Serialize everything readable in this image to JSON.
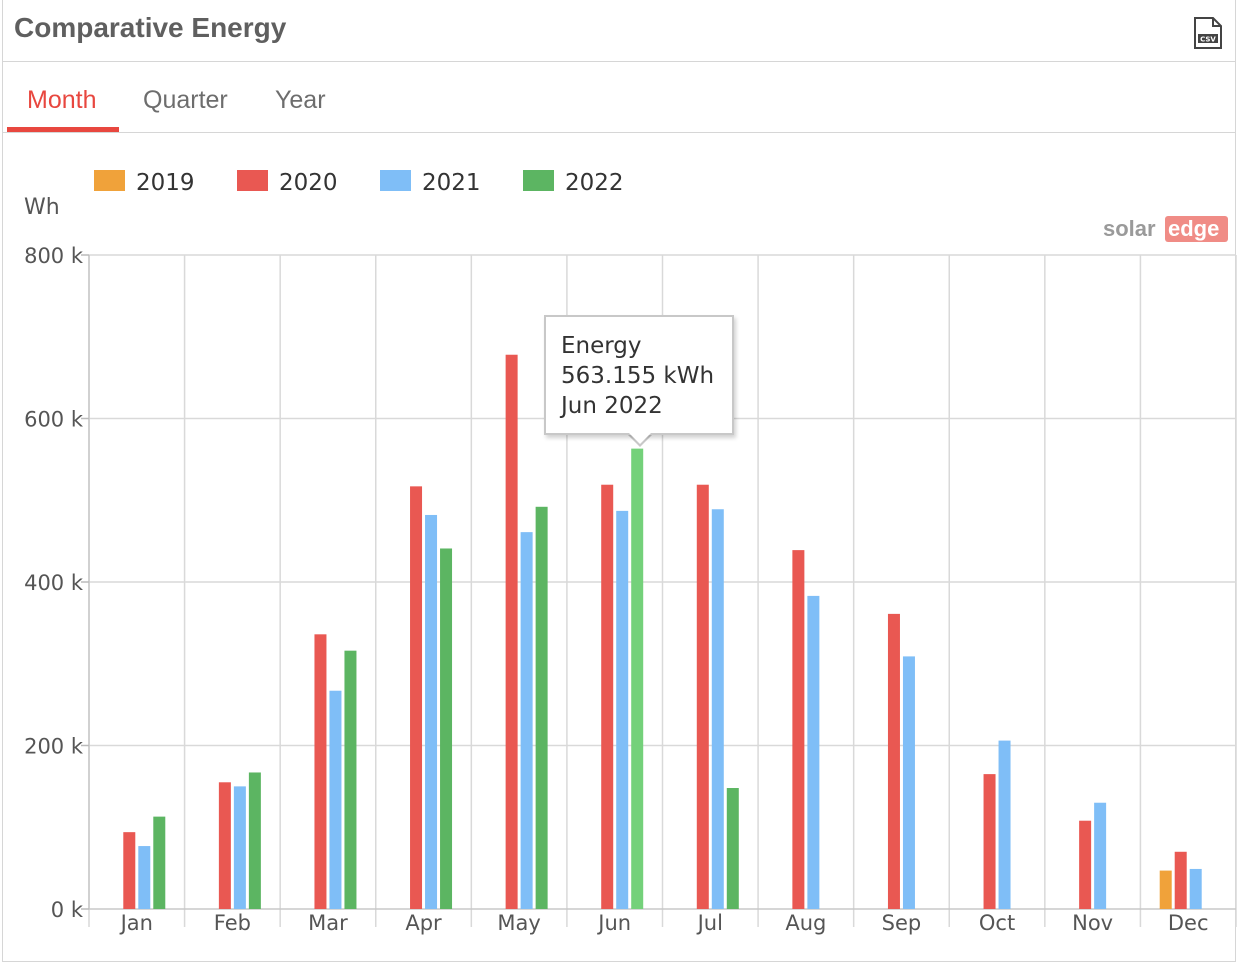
{
  "header": {
    "title": "Comparative Energy",
    "csv_icon": "csv-file-icon",
    "csv_label": "CSV"
  },
  "tabs": [
    {
      "label": "Month",
      "active": true
    },
    {
      "label": "Quarter",
      "active": false
    },
    {
      "label": "Year",
      "active": false
    }
  ],
  "brand": {
    "solar": "solar",
    "edge": "edge"
  },
  "tooltip": {
    "line1": "Energy",
    "line2": "563.155 kWh",
    "line3": "Jun 2022"
  },
  "colors": {
    "2019": "#f0a23a",
    "2020": "#e95852",
    "2021": "#7fbef7",
    "2022": "#5cb562",
    "accent": "#e8473f",
    "highlight": "#74d17a"
  },
  "chart_data": {
    "type": "bar",
    "ylabel": "Wh",
    "ylim": [
      0,
      800000
    ],
    "yticks": [
      0,
      200000,
      400000,
      600000,
      800000
    ],
    "ytick_labels": [
      "0 k",
      "200 k",
      "400 k",
      "600 k",
      "800 k"
    ],
    "categories": [
      "Jan",
      "Feb",
      "Mar",
      "Apr",
      "May",
      "Jun",
      "Jul",
      "Aug",
      "Sep",
      "Oct",
      "Nov",
      "Dec"
    ],
    "legend_position": "top-left",
    "grid": true,
    "series": [
      {
        "name": "2019",
        "color": "#f0a23a",
        "values": [
          null,
          null,
          null,
          null,
          null,
          null,
          null,
          null,
          null,
          null,
          null,
          47000
        ]
      },
      {
        "name": "2020",
        "color": "#e95852",
        "values": [
          94000,
          155000,
          336000,
          517000,
          678000,
          519000,
          519000,
          439000,
          361000,
          165000,
          108000,
          70000
        ]
      },
      {
        "name": "2021",
        "color": "#7fbef7",
        "values": [
          77000,
          150000,
          267000,
          482000,
          461000,
          487000,
          489000,
          383000,
          309000,
          206000,
          130000,
          49000
        ]
      },
      {
        "name": "2022",
        "color": "#5cb562",
        "values": [
          113000,
          167000,
          316000,
          441000,
          492000,
          563155,
          148000,
          null,
          null,
          null,
          null,
          null
        ]
      }
    ],
    "highlighted": {
      "series": "2022",
      "category": "Jun"
    }
  }
}
